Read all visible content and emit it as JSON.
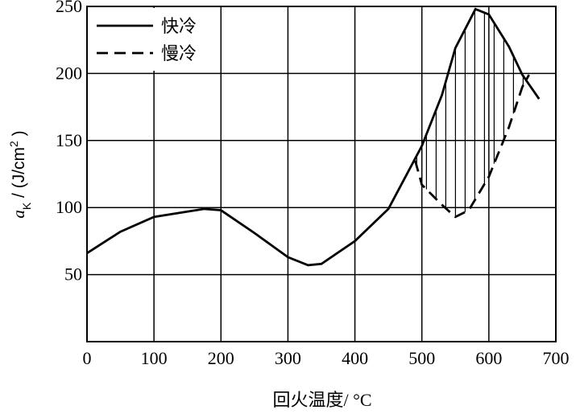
{
  "chart_data": {
    "type": "line",
    "x_label": "回火温度/ °C",
    "y_label": {
      "symbol": "a",
      "subscript": "K",
      "unit": " / (J/cm",
      "superscript": "2",
      "close": " )"
    },
    "xlim": [
      0,
      700
    ],
    "xticks": [
      0,
      100,
      200,
      300,
      400,
      500,
      600,
      700
    ],
    "ylim": [
      0,
      250
    ],
    "yticks": [
      50,
      100,
      150,
      200,
      250
    ],
    "grid": true,
    "legend": "upper left",
    "hatch_between_series": true,
    "series": [
      {
        "name": "快冷",
        "color": "#000000",
        "dash": "solid",
        "x": [
          0,
          50,
          100,
          175,
          200,
          250,
          300,
          330,
          350,
          400,
          450,
          500,
          530,
          550,
          580,
          600,
          630,
          650,
          675
        ],
        "values": [
          66,
          82,
          93,
          99,
          98,
          81,
          63,
          57,
          58,
          75,
          99,
          146,
          184,
          219,
          248,
          244,
          220,
          199,
          181
        ]
      },
      {
        "name": "慢冷",
        "color": "#000000",
        "dash": "dashed",
        "x": [
          490,
          500,
          530,
          550,
          570,
          600,
          630,
          650,
          660
        ],
        "values": [
          135,
          117,
          102,
          93,
          98,
          123,
          160,
          190,
          199
        ]
      }
    ]
  }
}
